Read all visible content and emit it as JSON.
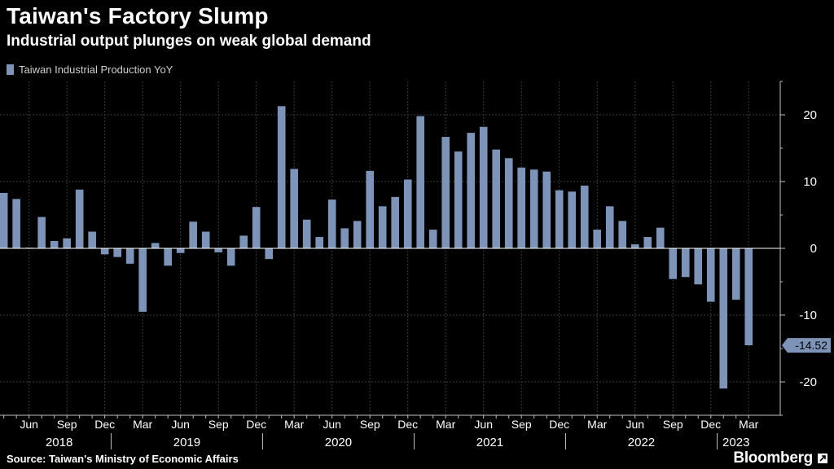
{
  "header": {
    "title": "Taiwan's Factory Slump",
    "subtitle": "Industrial output plunges on weak global demand"
  },
  "footer": {
    "source": "Source: Taiwan's Ministry of Economic Affairs",
    "brand": "Bloomberg"
  },
  "colors": {
    "bar": "#7d94b8",
    "background": "#000000",
    "grid": "#3a3a3a",
    "axis": "#bfbfbf"
  },
  "chart_data": {
    "type": "bar",
    "legend": [
      "Taiwan Industrial Production YoY"
    ],
    "x_start": "2018-04",
    "values": [
      8.3,
      7.4,
      0.1,
      4.7,
      1.1,
      1.5,
      8.8,
      2.5,
      -0.9,
      -1.3,
      -2.3,
      -9.5,
      0.8,
      -2.6,
      -0.7,
      4.0,
      2.5,
      -0.6,
      -2.6,
      1.9,
      6.2,
      -1.6,
      21.3,
      11.9,
      4.3,
      1.7,
      7.3,
      3.0,
      4.1,
      11.6,
      6.3,
      7.7,
      10.3,
      19.8,
      2.8,
      16.7,
      14.5,
      17.3,
      18.2,
      14.8,
      13.5,
      12.1,
      11.8,
      11.5,
      8.7,
      8.5,
      9.4,
      2.8,
      6.3,
      4.1,
      0.6,
      1.7,
      3.1,
      -4.6,
      -4.3,
      -5.4,
      -8.0,
      -21.0,
      -7.7,
      -14.52
    ],
    "month_ticks": [
      "Jun",
      "Sep",
      "Dec",
      "Mar",
      "Jun",
      "Sep",
      "Dec",
      "Mar",
      "Jun",
      "Sep",
      "Dec",
      "Mar",
      "Jun",
      "Sep",
      "Dec",
      "Mar",
      "Jun",
      "Sep",
      "Dec",
      "Mar"
    ],
    "year_labels": [
      "2018",
      "2019",
      "2020",
      "2021",
      "2022",
      "2023"
    ],
    "y_ticks": [
      "20",
      "10",
      "0",
      "-10",
      "-20"
    ],
    "ylim": [
      -25,
      25
    ],
    "last_value_label": "-14.52"
  }
}
